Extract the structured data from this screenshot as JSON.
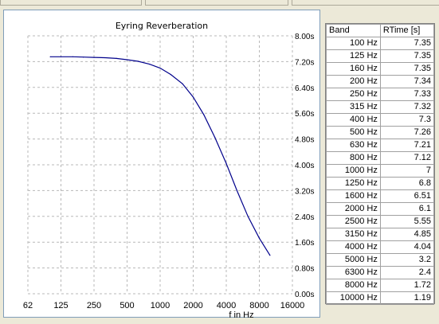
{
  "chart_data": {
    "type": "line",
    "title": "Eyring Reverberation",
    "xlabel": "f in Hz",
    "ylabel": "",
    "x_tick_labels": [
      "62",
      "125",
      "250",
      "500",
      "1000",
      "2000",
      "4000",
      "8000",
      "16000"
    ],
    "y_tick_labels": [
      "0.00s",
      "0.80s",
      "1.60s",
      "2.40s",
      "3.20s",
      "4.00s",
      "4.80s",
      "5.60s",
      "6.40s",
      "7.20s",
      "8.00s"
    ],
    "ylim": [
      0,
      8
    ],
    "x_scale": "log",
    "grid": true,
    "line_color": "#00008b",
    "series": [
      {
        "x": [
          100,
          125,
          160,
          200,
          250,
          315,
          400,
          500,
          630,
          800,
          1000,
          1250,
          1600,
          2000,
          2500,
          3150,
          4000,
          5000,
          6300,
          8000,
          10000
        ],
        "values": [
          7.35,
          7.35,
          7.35,
          7.34,
          7.33,
          7.32,
          7.3,
          7.26,
          7.21,
          7.12,
          7,
          6.8,
          6.51,
          6.1,
          5.55,
          4.85,
          4.04,
          3.2,
          2.4,
          1.72,
          1.19
        ]
      }
    ]
  },
  "table": {
    "headers": [
      "Band",
      "RTime [s]"
    ],
    "rows": [
      [
        "100 Hz",
        "7.35"
      ],
      [
        "125 Hz",
        "7.35"
      ],
      [
        "160 Hz",
        "7.35"
      ],
      [
        "200 Hz",
        "7.34"
      ],
      [
        "250 Hz",
        "7.33"
      ],
      [
        "315 Hz",
        "7.32"
      ],
      [
        "400 Hz",
        "7.3"
      ],
      [
        "500 Hz",
        "7.26"
      ],
      [
        "630 Hz",
        "7.21"
      ],
      [
        "800 Hz",
        "7.12"
      ],
      [
        "1000 Hz",
        "7"
      ],
      [
        "1250 Hz",
        "6.8"
      ],
      [
        "1600 Hz",
        "6.51"
      ],
      [
        "2000 Hz",
        "6.1"
      ],
      [
        "2500 Hz",
        "5.55"
      ],
      [
        "3150 Hz",
        "4.85"
      ],
      [
        "4000 Hz",
        "4.04"
      ],
      [
        "5000 Hz",
        "3.2"
      ],
      [
        "6300 Hz",
        "2.4"
      ],
      [
        "8000 Hz",
        "1.72"
      ],
      [
        "10000 Hz",
        "1.19"
      ]
    ]
  }
}
